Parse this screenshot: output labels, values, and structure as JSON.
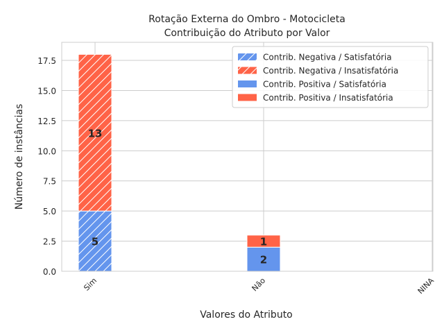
{
  "chart_data": {
    "type": "bar",
    "stacked": true,
    "title_lines": [
      "Rotação Externa do Ombro - Motocicleta",
      "Contribuição do Atributo por Valor"
    ],
    "xlabel": "Valores do Atributo",
    "ylabel": "Número de instâncias",
    "categories": [
      "Sim",
      "Não",
      "NINA"
    ],
    "yticks": [
      "0.0",
      "2.5",
      "5.0",
      "7.5",
      "10.0",
      "12.5",
      "15.0",
      "17.5"
    ],
    "ylim": [
      0,
      19
    ],
    "grid": true,
    "legend_position": "top-right",
    "colors": {
      "satisfatoria": "#6495ed",
      "insatisfatoria": "#ff6347"
    },
    "series": [
      {
        "name": "Contrib. Negativa / Satisfatória",
        "hatched": true,
        "color": "#6495ed",
        "values": [
          5,
          0,
          0
        ]
      },
      {
        "name": "Contrib. Negativa / Insatisfatória",
        "hatched": true,
        "color": "#ff6347",
        "values": [
          13,
          0,
          0
        ]
      },
      {
        "name": "Contrib. Positiva / Satisfatória",
        "hatched": false,
        "color": "#6495ed",
        "values": [
          0,
          2,
          0
        ]
      },
      {
        "name": "Contrib. Positiva / Insatisfatória",
        "hatched": false,
        "color": "#ff6347",
        "values": [
          0,
          1,
          0
        ]
      }
    ],
    "data_labels": [
      {
        "category": "Sim",
        "text": "5"
      },
      {
        "category": "Sim",
        "text": "13"
      },
      {
        "category": "Não",
        "text": "2"
      },
      {
        "category": "Não",
        "text": "1"
      }
    ]
  }
}
